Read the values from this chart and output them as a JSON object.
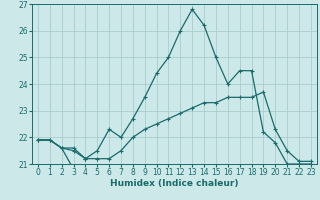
{
  "xlabel": "Humidex (Indice chaleur)",
  "background_color": "#cce8e8",
  "grid_color": "#aacccc",
  "line_color": "#1a6b6b",
  "xlim": [
    -0.5,
    23.5
  ],
  "ylim": [
    21.0,
    27.0
  ],
  "yticks": [
    21,
    22,
    23,
    24,
    25,
    26,
    27
  ],
  "xticks": [
    0,
    1,
    2,
    3,
    4,
    5,
    6,
    7,
    8,
    9,
    10,
    11,
    12,
    13,
    14,
    15,
    16,
    17,
    18,
    19,
    20,
    21,
    22,
    23
  ],
  "line1_x": [
    0,
    1,
    2,
    3,
    4,
    5,
    6,
    7,
    8,
    9,
    10,
    11,
    12,
    13,
    14,
    15,
    16,
    17,
    18,
    19,
    20,
    21,
    22,
    23
  ],
  "line1_y": [
    21.9,
    21.9,
    21.6,
    20.8,
    20.8,
    20.8,
    20.8,
    20.8,
    20.8,
    20.8,
    20.8,
    20.8,
    20.8,
    20.8,
    20.8,
    20.8,
    20.8,
    20.8,
    20.8,
    20.8,
    20.8,
    20.8,
    20.8,
    20.8
  ],
  "line2_x": [
    0,
    1,
    2,
    3,
    4,
    5,
    6,
    7,
    8,
    9,
    10,
    11,
    12,
    13,
    14,
    15,
    16,
    17,
    18,
    19,
    20,
    21,
    22,
    23
  ],
  "line2_y": [
    21.9,
    21.9,
    21.6,
    21.6,
    21.2,
    21.2,
    21.2,
    21.5,
    22.0,
    22.3,
    22.5,
    22.7,
    22.9,
    23.1,
    23.3,
    23.3,
    23.5,
    23.5,
    23.5,
    23.7,
    22.3,
    21.5,
    21.1,
    21.1
  ],
  "line3_x": [
    0,
    1,
    2,
    3,
    4,
    5,
    6,
    7,
    8,
    9,
    10,
    11,
    12,
    13,
    14,
    15,
    16,
    17,
    18,
    19,
    20,
    21,
    22,
    23
  ],
  "line3_y": [
    21.9,
    21.9,
    21.6,
    21.5,
    21.2,
    21.5,
    22.3,
    22.0,
    22.7,
    23.5,
    24.4,
    25.0,
    26.0,
    26.8,
    26.2,
    25.0,
    24.0,
    24.5,
    24.5,
    22.2,
    21.8,
    21.0,
    21.0,
    21.0
  ]
}
